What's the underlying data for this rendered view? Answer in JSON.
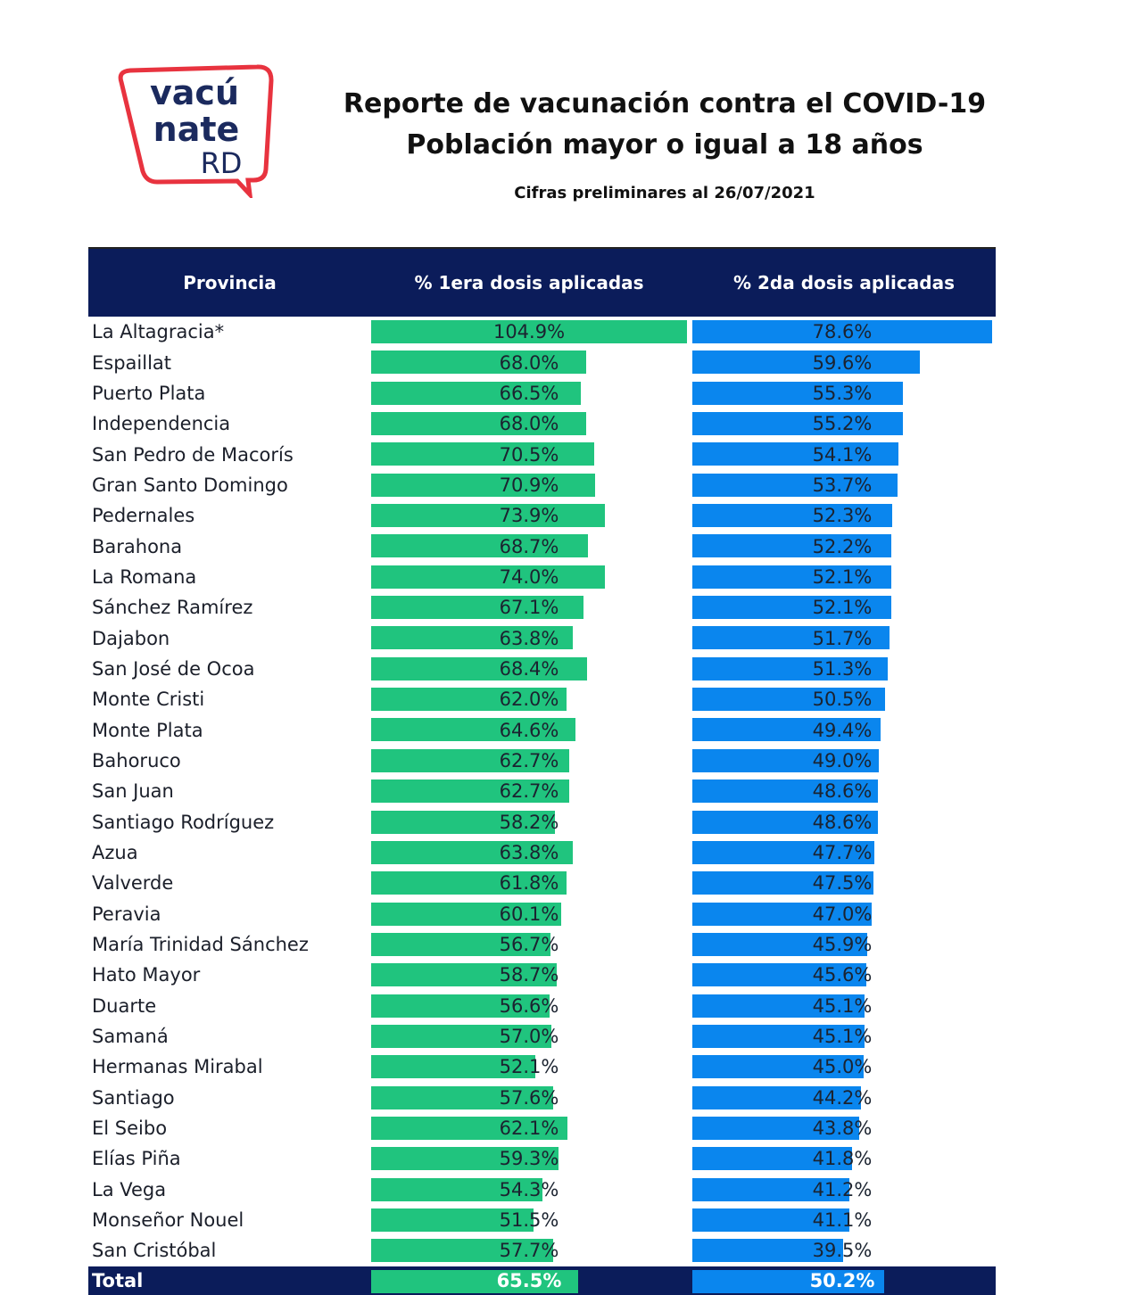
{
  "logo": {
    "line1": "vacú",
    "line2": "nate",
    "line3": "RD",
    "frame_color": "#e8333f",
    "text_color": "#1b2a5e"
  },
  "title_line1": "Reporte de vacunación contra el COVID-19",
  "title_line2": "Población mayor o igual a 18 años",
  "subtitle": "Cifras preliminares al  26/07/2021",
  "colors": {
    "header": "#0b1c5a",
    "first_dose": "#20c47e",
    "second_dose": "#0a86ee"
  },
  "chart_data": {
    "type": "table",
    "columns": [
      "Provincia",
      "% 1era dosis aplicadas",
      "% 2da dosis aplicadas"
    ],
    "rows": [
      [
        "La Altagracia*",
        104.9,
        78.6
      ],
      [
        "Espaillat",
        68.0,
        59.6
      ],
      [
        "Puerto Plata",
        66.5,
        55.3
      ],
      [
        "Independencia",
        68.0,
        55.2
      ],
      [
        "San Pedro de Macorís",
        70.5,
        54.1
      ],
      [
        "Gran Santo Domingo",
        70.9,
        53.7
      ],
      [
        "Pedernales",
        73.9,
        52.3
      ],
      [
        "Barahona",
        68.7,
        52.2
      ],
      [
        "La Romana",
        74.0,
        52.1
      ],
      [
        "Sánchez Ramírez",
        67.1,
        52.1
      ],
      [
        "Dajabon",
        63.8,
        51.7
      ],
      [
        "San José de Ocoa",
        68.4,
        51.3
      ],
      [
        "Monte Cristi",
        62.0,
        50.5
      ],
      [
        "Monte Plata",
        64.6,
        49.4
      ],
      [
        "Bahoruco",
        62.7,
        49.0
      ],
      [
        "San Juan",
        62.7,
        48.6
      ],
      [
        "Santiago Rodríguez",
        58.2,
        48.6
      ],
      [
        "Azua",
        63.8,
        47.7
      ],
      [
        "Valverde",
        61.8,
        47.5
      ],
      [
        "Peravia",
        60.1,
        47.0
      ],
      [
        "María Trinidad Sánchez",
        56.7,
        45.9
      ],
      [
        "Hato Mayor",
        58.7,
        45.6
      ],
      [
        "Duarte",
        56.6,
        45.1
      ],
      [
        "Samaná",
        57.0,
        45.1
      ],
      [
        "Hermanas Mirabal",
        52.1,
        45.0
      ],
      [
        "Santiago",
        57.6,
        44.2
      ],
      [
        "El Seibo",
        62.1,
        43.8
      ],
      [
        "Elías Piña",
        59.3,
        41.8
      ],
      [
        "La Vega",
        54.3,
        41.2
      ],
      [
        "Monseñor Nouel",
        51.5,
        41.1
      ],
      [
        "San Cristóbal",
        57.7,
        39.5
      ]
    ],
    "total": [
      "Total",
      65.5,
      50.2
    ],
    "unit": "%"
  }
}
